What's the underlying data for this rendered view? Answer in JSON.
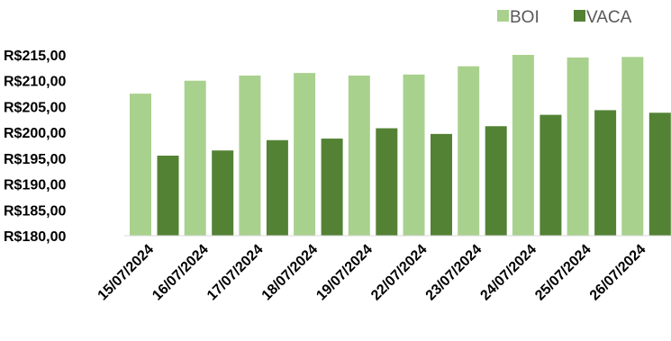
{
  "chart_data": {
    "type": "bar",
    "categories": [
      "15/07/2024",
      "16/07/2024",
      "17/07/2024",
      "18/07/2024",
      "19/07/2024",
      "22/07/2024",
      "23/07/2024",
      "24/07/2024",
      "25/07/2024",
      "26/07/2024"
    ],
    "series": [
      {
        "name": "BOI",
        "color": "#a9d18e",
        "values": [
          207.5,
          210.0,
          211.0,
          211.5,
          211.0,
          211.2,
          212.8,
          215.0,
          214.5,
          214.6
        ]
      },
      {
        "name": "VACA",
        "color": "#548235",
        "values": [
          195.5,
          196.5,
          198.5,
          198.8,
          200.8,
          199.7,
          201.2,
          203.4,
          204.3,
          203.8
        ]
      }
    ],
    "yticks": [
      "R$180,00",
      "R$185,00",
      "R$190,00",
      "R$195,00",
      "R$200,00",
      "R$205,00",
      "R$210,00",
      "R$215,00"
    ],
    "ylim": [
      180,
      215
    ],
    "title": "",
    "xlabel": "",
    "ylabel": "",
    "grid": false,
    "legend_position": "top-right"
  }
}
